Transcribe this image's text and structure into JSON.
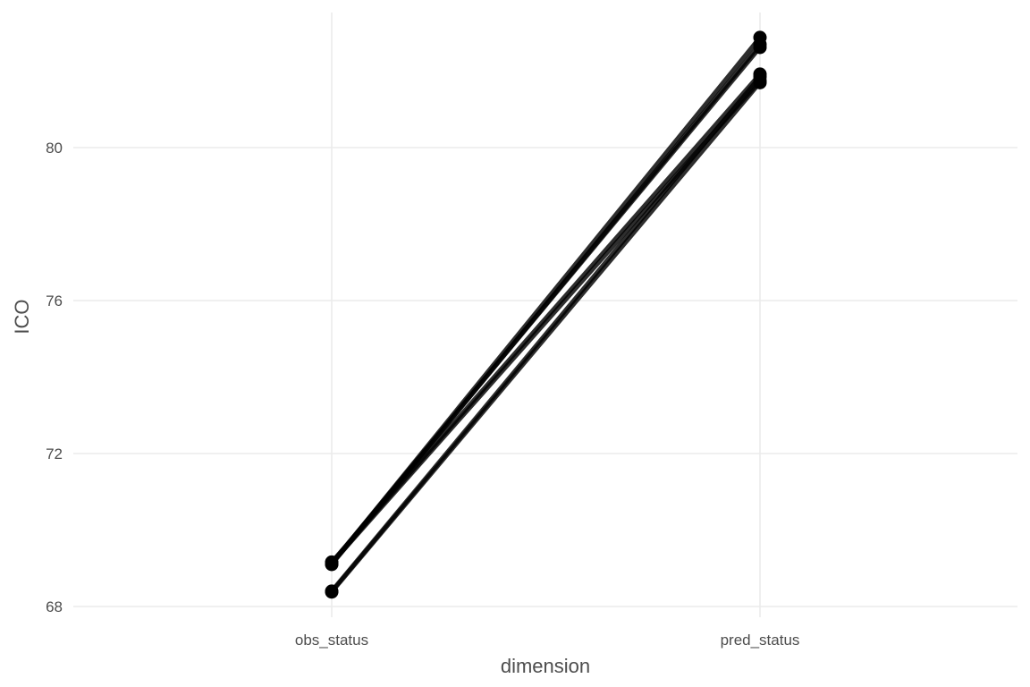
{
  "chart_data": {
    "type": "line",
    "x": [
      "obs_status",
      "pred_status"
    ],
    "series": [
      {
        "values": [
          69.12,
          82.88
        ]
      },
      {
        "values": [
          69.14,
          82.62
        ]
      },
      {
        "values": [
          69.1,
          82.7
        ]
      },
      {
        "values": [
          69.16,
          81.92
        ]
      },
      {
        "values": [
          69.13,
          81.75
        ]
      },
      {
        "values": [
          68.4,
          81.85
        ]
      },
      {
        "values": [
          68.38,
          81.7
        ]
      }
    ],
    "y_ticks": [
      "68",
      "72",
      "76",
      "80"
    ],
    "y_tick_values": [
      68,
      72,
      76,
      80
    ],
    "xlabel": "dimension",
    "ylabel": "ICO",
    "ylim": [
      67.97,
      83.5
    ],
    "grid": true,
    "legend": "none",
    "line_color": "#000000",
    "grid_color": "#ebebeb"
  }
}
